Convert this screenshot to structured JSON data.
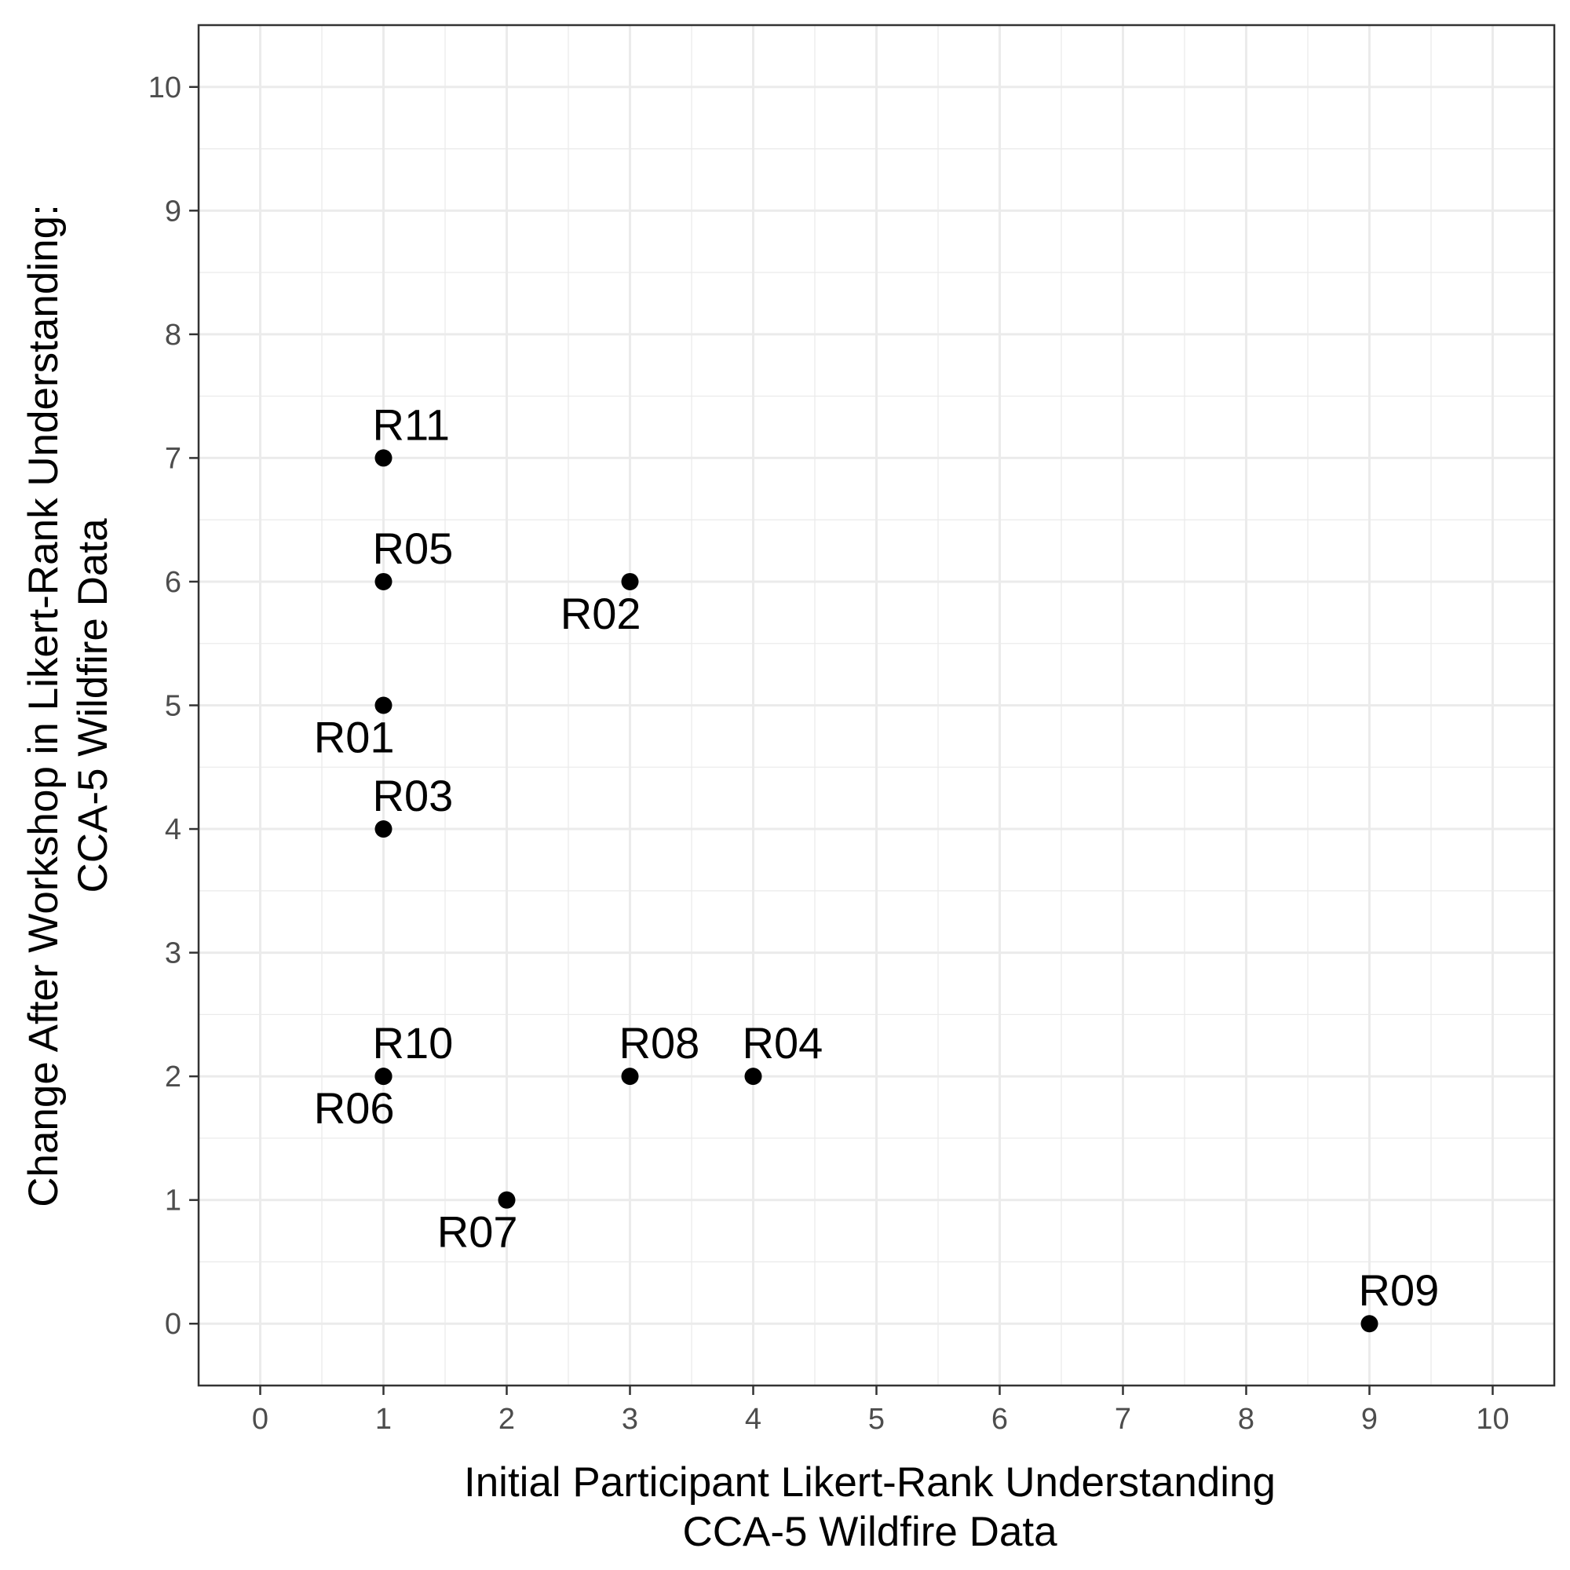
{
  "chart_data": {
    "type": "scatter",
    "title": "",
    "xlabel": [
      "Initial Participant Likert-Rank Understanding",
      "CCA-5 Wildfire Data"
    ],
    "ylabel": [
      "Change After Workshop in Likert-Rank Understanding:",
      "CCA-5 Wildfire Data"
    ],
    "xlim": [
      -0.5,
      10.5
    ],
    "ylim": [
      -0.5,
      10.5
    ],
    "x_ticks": [
      "0",
      "1",
      "2",
      "3",
      "4",
      "5",
      "6",
      "7",
      "8",
      "9",
      "10"
    ],
    "y_ticks": [
      "0",
      "1",
      "2",
      "3",
      "4",
      "5",
      "6",
      "7",
      "8",
      "9",
      "10"
    ],
    "grid": true,
    "legend": "none",
    "colors": {
      "point": "#000000",
      "grid": "#ebebeb",
      "panel_border": "#333333"
    },
    "points": [
      {
        "label": "R01",
        "x": 1,
        "y": 5,
        "label_position": "below-left"
      },
      {
        "label": "R02",
        "x": 3,
        "y": 6,
        "label_position": "below-left"
      },
      {
        "label": "R03",
        "x": 1,
        "y": 4,
        "label_position": "above-right"
      },
      {
        "label": "R04",
        "x": 4,
        "y": 2,
        "label_position": "above-right"
      },
      {
        "label": "R05",
        "x": 1,
        "y": 6,
        "label_position": "above-right"
      },
      {
        "label": "R06",
        "x": 1,
        "y": 2,
        "label_position": "below-left"
      },
      {
        "label": "R07",
        "x": 2,
        "y": 1,
        "label_position": "below-left"
      },
      {
        "label": "R08",
        "x": 3,
        "y": 2,
        "label_position": "above-right"
      },
      {
        "label": "R09",
        "x": 9,
        "y": 0,
        "label_position": "above-right"
      },
      {
        "label": "R10",
        "x": 1,
        "y": 2,
        "label_position": "above-right"
      },
      {
        "label": "R11",
        "x": 1,
        "y": 7,
        "label_position": "above-right"
      }
    ]
  }
}
